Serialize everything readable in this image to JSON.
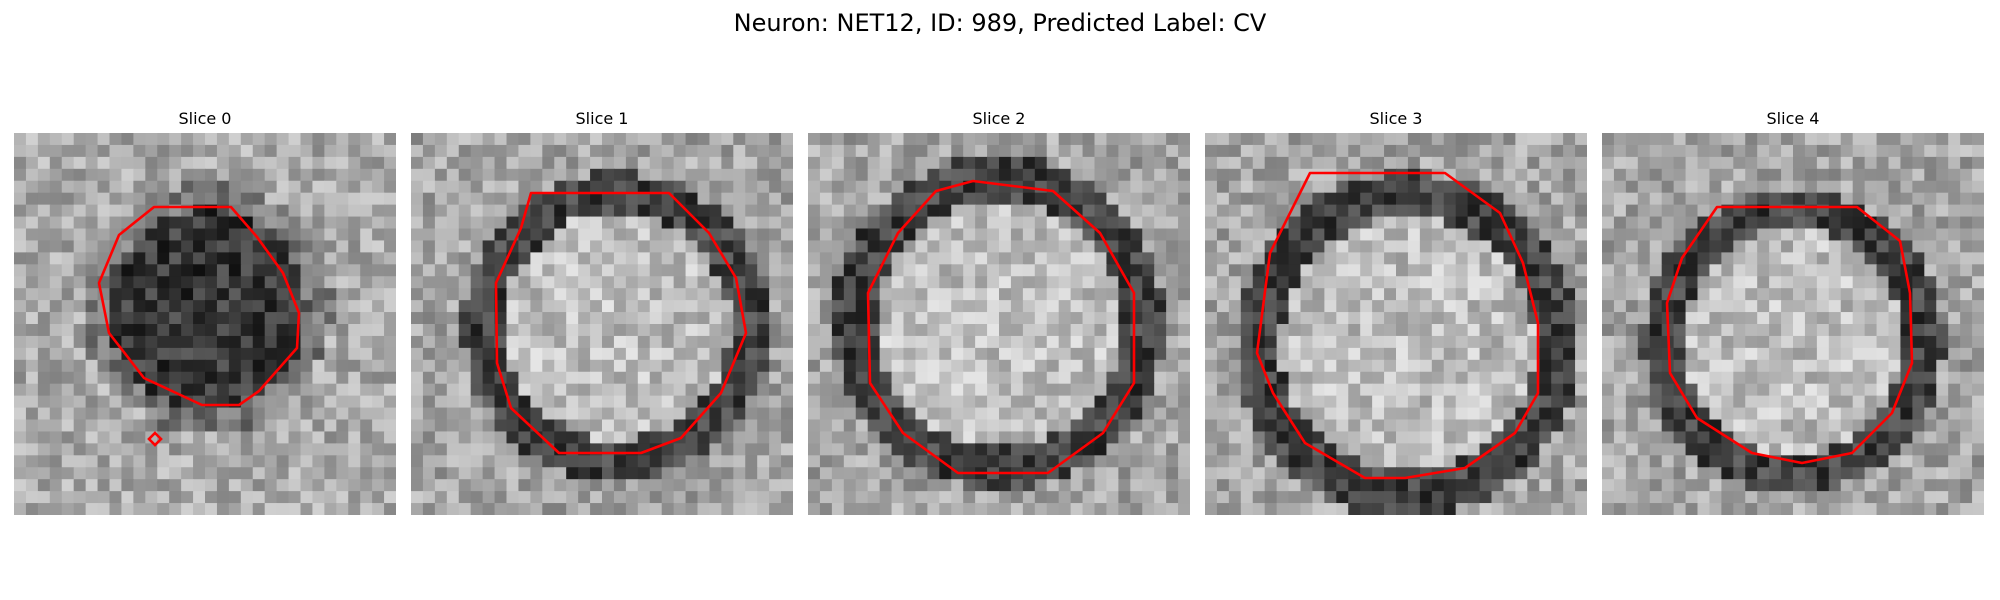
{
  "figure": {
    "title": "Neuron: NET12, ID: 989, Predicted Label: CV"
  },
  "panels": [
    {
      "title": "Slice 0"
    },
    {
      "title": "Slice 1"
    },
    {
      "title": "Slice 2"
    },
    {
      "title": "Slice 3"
    },
    {
      "title": "Slice 4"
    }
  ],
  "colors": {
    "contour": "#ff0000",
    "background": "#ffffff"
  }
}
